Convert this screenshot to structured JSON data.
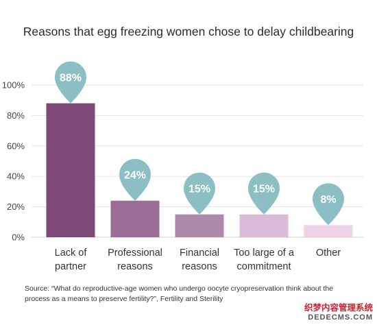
{
  "chart_data": {
    "type": "bar",
    "title": "Reasons that egg freezing women chose to delay childbearing",
    "categories": [
      [
        "Lack of",
        "partner"
      ],
      [
        "Professional",
        "reasons"
      ],
      [
        "Financial",
        "reasons"
      ],
      [
        "Too large of a",
        "commitment"
      ],
      [
        "Other"
      ]
    ],
    "values": [
      88,
      24,
      15,
      15,
      8
    ],
    "data_labels": [
      "88%",
      "24%",
      "15%",
      "15%",
      "8%"
    ],
    "bar_colors": [
      "#7d4a78",
      "#9a6d95",
      "#ad8aaa",
      "#d9bcd7",
      "#efd2e6"
    ],
    "marker_color": "#8bbfc3",
    "yticks": [
      "0%",
      "20%",
      "40%",
      "60%",
      "80%",
      "100%"
    ],
    "ylim": [
      0,
      100
    ],
    "grid": true
  },
  "source": "Source: “What do reproductive-age women who undergo oocyte cryopreservation think about the process as a means to preserve fertility?”, Fertility and Sterility",
  "watermark": {
    "line1": "织梦内容管理系统",
    "line2": "DEDECMS.COM"
  }
}
